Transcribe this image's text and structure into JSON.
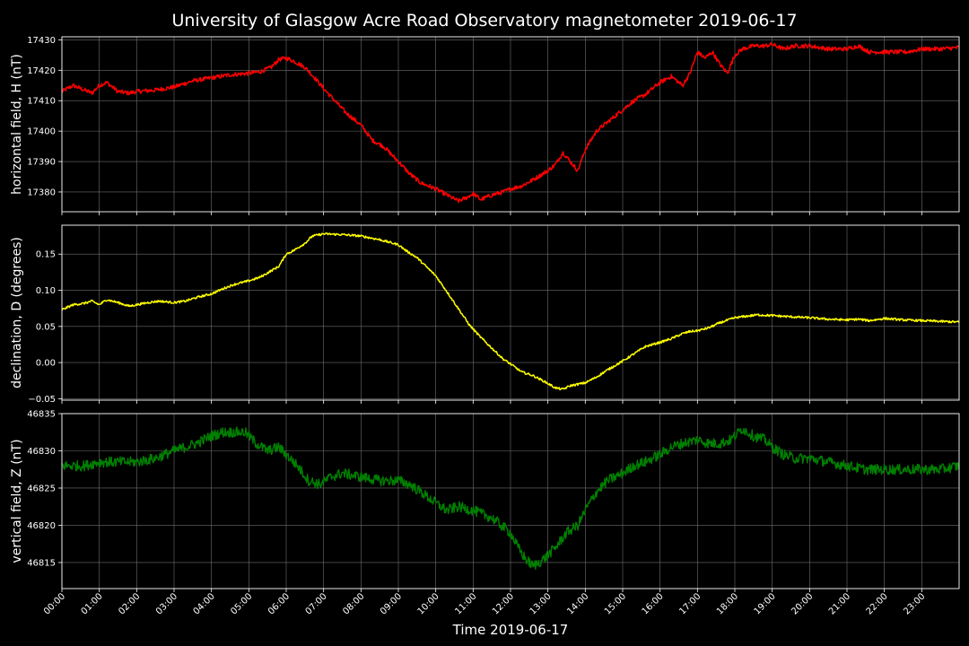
{
  "chart_data": {
    "type": "line",
    "title": "University of Glasgow Acre Road Observatory magnetometer 2019-06-17",
    "xlabel": "Time 2019-06-17",
    "x_ticks": [
      "00:00",
      "01:00",
      "02:00",
      "03:00",
      "04:00",
      "05:00",
      "06:00",
      "07:00",
      "08:00",
      "09:00",
      "10:00",
      "11:00",
      "12:00",
      "13:00",
      "14:00",
      "15:00",
      "16:00",
      "17:00",
      "18:00",
      "19:00",
      "20:00",
      "21:00",
      "22:00",
      "23:00"
    ],
    "xlim": [
      0,
      24
    ],
    "grid": true,
    "background": "#000000",
    "panels": [
      {
        "ylabel": "horizontal field, H (nT)",
        "color": "#ff0000",
        "ylim": [
          17373.5,
          17431
        ],
        "yticks": [
          "17380",
          "17390",
          "17400",
          "17410",
          "17420",
          "17430"
        ],
        "ytick_values": [
          17380,
          17390,
          17400,
          17410,
          17420,
          17430
        ],
        "noise": 0.7,
        "x": [
          0,
          0.3,
          0.5,
          0.8,
          1,
          1.2,
          1.5,
          1.8,
          2,
          2.5,
          3,
          3.5,
          4,
          4.5,
          5,
          5.3,
          5.6,
          5.8,
          6,
          6.2,
          6.5,
          6.8,
          7,
          7.3,
          7.6,
          8,
          8.3,
          8.6,
          9,
          9.3,
          9.6,
          10,
          10.3,
          10.6,
          10.8,
          11,
          11.2,
          11.5,
          11.8,
          12,
          12.3,
          12.6,
          13,
          13.2,
          13.4,
          13.6,
          13.8,
          14,
          14.3,
          14.6,
          15,
          15.3,
          15.6,
          16,
          16.3,
          16.6,
          16.8,
          17,
          17.2,
          17.4,
          17.6,
          17.8,
          18,
          18.2,
          18.5,
          18.8,
          19,
          19.3,
          19.6,
          20,
          20.5,
          21,
          21.3,
          21.6,
          22,
          22.3,
          22.6,
          23,
          23.5,
          24
        ],
        "y": [
          17413,
          17415,
          17414,
          17412.5,
          17415,
          17416,
          17413,
          17412.5,
          17413,
          17413.5,
          17414.5,
          17416.5,
          17417.5,
          17418.5,
          17419,
          17419.5,
          17421,
          17423.5,
          17424,
          17423,
          17421,
          17417,
          17414,
          17410,
          17406,
          17402,
          17397,
          17395,
          17390,
          17386,
          17383,
          17381,
          17379,
          17377,
          17378,
          17379.5,
          17377.5,
          17379,
          17380,
          17381,
          17382,
          17384,
          17387,
          17389,
          17393,
          17390,
          17387,
          17394,
          17400,
          17403,
          17407,
          17410,
          17412,
          17416,
          17418,
          17415,
          17419,
          17426,
          17424,
          17426,
          17422,
          17419,
          17425,
          17427,
          17428,
          17428,
          17428.5,
          17427,
          17428,
          17428,
          17427,
          17427,
          17428,
          17426,
          17426,
          17426,
          17426,
          17427,
          17427,
          17427.5
        ]
      },
      {
        "ylabel": "declination, D (degrees)",
        "color": "#ffff00",
        "ylim": [
          -0.052,
          0.19
        ],
        "yticks": [
          "−0.05",
          "0.00",
          "0.05",
          "0.10",
          "0.15"
        ],
        "ytick_values": [
          -0.05,
          0,
          0.05,
          0.1,
          0.15
        ],
        "noise": 0.0015,
        "x": [
          0,
          0.3,
          0.6,
          0.8,
          1,
          1.2,
          1.5,
          1.8,
          2,
          2.3,
          2.6,
          3,
          3.3,
          3.6,
          4,
          4.3,
          4.6,
          5,
          5.3,
          5.6,
          5.8,
          6,
          6.2,
          6.5,
          6.7,
          7,
          7.5,
          8,
          8.5,
          9,
          9.2,
          9.5,
          9.8,
          10,
          10.3,
          10.6,
          10.9,
          11.2,
          11.5,
          11.8,
          12,
          12.3,
          12.6,
          12.9,
          13.2,
          13.4,
          13.6,
          14,
          14.3,
          14.6,
          15,
          15.3,
          15.6,
          16,
          16.3,
          16.6,
          16.8,
          17,
          17.3,
          17.6,
          18,
          18.3,
          18.6,
          19,
          19.3,
          19.6,
          20,
          20.5,
          21,
          21.3,
          21.6,
          22,
          22.5,
          23,
          23.5,
          24
        ],
        "y": [
          0.073,
          0.08,
          0.082,
          0.085,
          0.08,
          0.087,
          0.083,
          0.078,
          0.08,
          0.083,
          0.085,
          0.083,
          0.085,
          0.09,
          0.095,
          0.102,
          0.108,
          0.113,
          0.118,
          0.127,
          0.133,
          0.15,
          0.155,
          0.165,
          0.175,
          0.178,
          0.177,
          0.175,
          0.17,
          0.163,
          0.155,
          0.145,
          0.13,
          0.12,
          0.098,
          0.075,
          0.052,
          0.035,
          0.02,
          0.005,
          -0.002,
          -0.013,
          -0.018,
          -0.026,
          -0.035,
          -0.037,
          -0.032,
          -0.028,
          -0.02,
          -0.01,
          0.002,
          0.012,
          0.022,
          0.028,
          0.033,
          0.04,
          0.043,
          0.044,
          0.048,
          0.055,
          0.062,
          0.064,
          0.066,
          0.065,
          0.064,
          0.063,
          0.062,
          0.06,
          0.059,
          0.06,
          0.058,
          0.061,
          0.059,
          0.058,
          0.057,
          0.056
        ]
      },
      {
        "ylabel": "vertical field, Z (nT)",
        "color": "#008000",
        "ylim": [
          46811.5,
          46835
        ],
        "yticks": [
          "46815",
          "46820",
          "46825",
          "46830",
          "46835"
        ],
        "ytick_values": [
          46815,
          46820,
          46825,
          46830,
          46835
        ],
        "noise": 0.7,
        "x": [
          0,
          0.3,
          0.6,
          1,
          1.5,
          2,
          2.5,
          3,
          3.3,
          3.6,
          4,
          4.3,
          4.6,
          4.9,
          5.2,
          5.5,
          5.8,
          6,
          6.3,
          6.6,
          6.9,
          7.2,
          7.5,
          8,
          8.5,
          9,
          9.3,
          9.6,
          10,
          10.3,
          10.6,
          11,
          11.5,
          12,
          12.2,
          12.4,
          12.6,
          12.9,
          13.2,
          13.5,
          13.8,
          14,
          14.3,
          14.6,
          15,
          15.3,
          15.6,
          16,
          16.3,
          16.6,
          17,
          17.3,
          17.6,
          17.9,
          18.2,
          18.5,
          18.8,
          19,
          19.3,
          19.6,
          20,
          20.5,
          21,
          21.5,
          22,
          22.5,
          23,
          23.5,
          24
        ],
        "y": [
          46828,
          46828,
          46828,
          46828.5,
          46828.5,
          46828.5,
          46829,
          46830,
          46830.5,
          46831,
          46832,
          46832.5,
          46832.5,
          46832.5,
          46831,
          46830,
          46830.5,
          46829.5,
          46828,
          46826,
          46825.5,
          46826.5,
          46827,
          46826.5,
          46826,
          46826,
          46825.5,
          46824.5,
          46823,
          46822,
          46822.5,
          46822,
          46821,
          46819,
          46817,
          46815.5,
          46814.5,
          46815.5,
          46817,
          46819,
          46820,
          46822,
          46824.5,
          46826,
          46827,
          46828,
          46828.5,
          46829.5,
          46830.5,
          46831,
          46831.5,
          46831,
          46831,
          46831.5,
          46833,
          46832,
          46831.5,
          46830.5,
          46829.5,
          46829,
          46829,
          46828.5,
          46828,
          46827.5,
          46827.5,
          46827.5,
          46827.5,
          46827.5,
          46828
        ]
      }
    ]
  }
}
